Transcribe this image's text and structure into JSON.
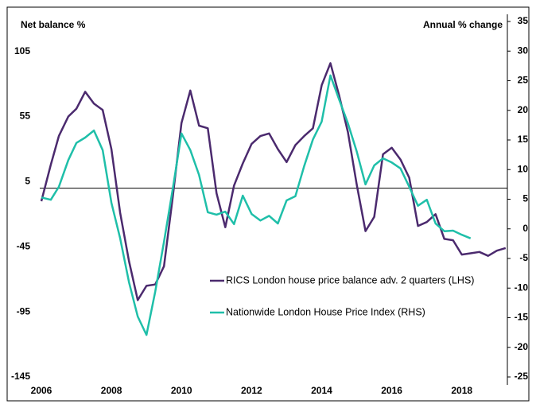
{
  "chart_data": {
    "type": "line",
    "y_label": "Net balance %",
    "y2_label": "Annual % change",
    "xlim": [
      2006,
      2019.3
    ],
    "xticks": [
      2006,
      2008,
      2010,
      2012,
      2014,
      2016,
      2018
    ],
    "ylim": [
      -145,
      128
    ],
    "yticks": [
      -145,
      -95,
      -45,
      5,
      55,
      105
    ],
    "y2lim": [
      -25,
      35
    ],
    "y2ticks": [
      -25,
      -20,
      -15,
      -10,
      -5,
      0,
      5,
      10,
      15,
      20,
      25,
      30,
      35
    ],
    "series": [
      {
        "name": "RICS London house price balance adv. 2 quarters (LHS)",
        "color": "#4b2a6e",
        "axis": "y",
        "x": [
          2006.0,
          2006.27,
          2006.5,
          2006.77,
          2007.0,
          2007.25,
          2007.5,
          2007.75,
          2008.0,
          2008.25,
          2008.5,
          2008.75,
          2009.0,
          2009.25,
          2009.5,
          2009.75,
          2010.0,
          2010.25,
          2010.5,
          2010.75,
          2011.0,
          2011.25,
          2011.5,
          2011.75,
          2012.0,
          2012.25,
          2012.5,
          2012.75,
          2013.0,
          2013.25,
          2013.5,
          2013.75,
          2014.0,
          2014.25,
          2014.5,
          2014.75,
          2015.0,
          2015.25,
          2015.5,
          2015.75,
          2016.0,
          2016.25,
          2016.5,
          2016.75,
          2017.0,
          2017.25,
          2017.5,
          2017.75,
          2018.0,
          2018.25,
          2018.5,
          2018.75,
          2019.0,
          2019.25
        ],
        "values": [
          -10,
          18,
          40,
          55,
          61,
          74,
          65,
          60,
          30,
          -19,
          -56,
          -86,
          -75,
          -74,
          -60,
          -7,
          50,
          75,
          48,
          46,
          -4,
          -30,
          2,
          19,
          34,
          40,
          42,
          30,
          20,
          33,
          40,
          46,
          79,
          96,
          71,
          43,
          3,
          -33,
          -22,
          26,
          31,
          22,
          8,
          -29,
          -26,
          -20,
          -39,
          -40,
          -51,
          -50,
          -49,
          -52,
          -48,
          -46
        ]
      },
      {
        "name": "Nationwide London House Price Index (RHS)",
        "color": "#1fbfa9",
        "axis": "y2",
        "x": [
          2006.0,
          2006.27,
          2006.5,
          2006.77,
          2007.0,
          2007.25,
          2007.5,
          2007.75,
          2008.0,
          2008.25,
          2008.5,
          2008.75,
          2009.0,
          2009.25,
          2009.5,
          2009.75,
          2010.0,
          2010.25,
          2010.5,
          2010.75,
          2011.0,
          2011.25,
          2011.5,
          2011.75,
          2012.0,
          2012.25,
          2012.5,
          2012.75,
          2013.0,
          2013.25,
          2013.5,
          2013.75,
          2014.0,
          2014.25,
          2014.5,
          2014.75,
          2015.0,
          2015.25,
          2015.5,
          2015.75,
          2016.0,
          2016.25,
          2016.5,
          2016.75,
          2017.0,
          2017.25,
          2017.5,
          2017.75,
          2018.0,
          2018.25
        ],
        "values": [
          5.3,
          4.9,
          7.1,
          11.6,
          14.5,
          15.4,
          16.6,
          13.3,
          4.4,
          -1.6,
          -9.0,
          -14.8,
          -17.9,
          -10.6,
          -2.2,
          6.7,
          16.1,
          13.3,
          9.1,
          2.8,
          2.4,
          2.9,
          0.8,
          5.6,
          2.5,
          1.4,
          2.2,
          0.9,
          4.8,
          5.5,
          10.6,
          15.1,
          18.1,
          25.9,
          21.8,
          17.8,
          13.1,
          7.5,
          10.7,
          11.9,
          11.2,
          10.2,
          7.1,
          3.9,
          4.9,
          0.9,
          -0.4,
          -0.3,
          -1.0,
          -1.6
        ]
      }
    ]
  }
}
